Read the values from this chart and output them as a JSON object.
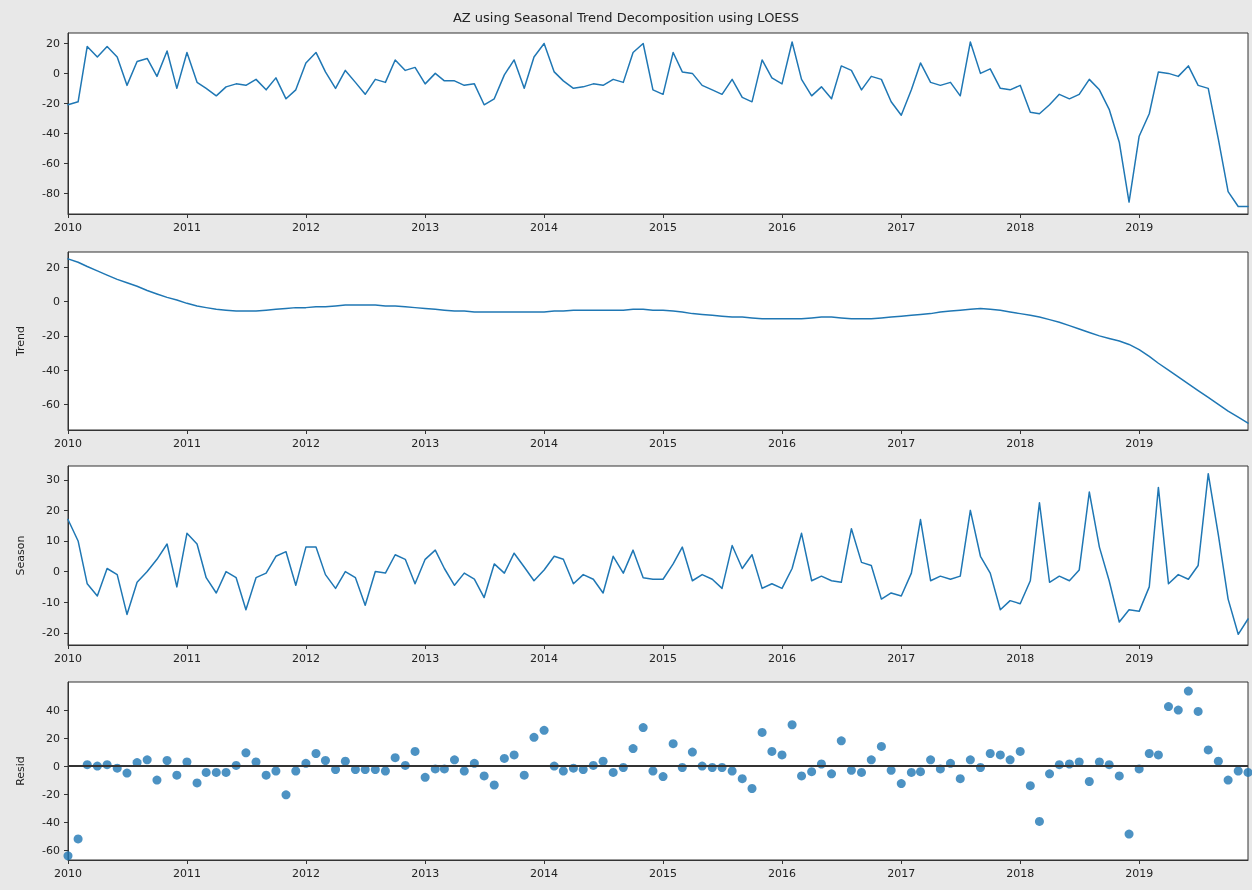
{
  "chart_data": [
    {
      "type": "line",
      "title": "AZ using Seasonal Trend Decomposition using LOESS",
      "color": "#1f77b4",
      "marker": "none",
      "line_style": "solid",
      "grid": false,
      "x": [
        "2010-01",
        "2010-02",
        "2010-03",
        "2010-04",
        "2010-05",
        "2010-06",
        "2010-07",
        "2010-08",
        "2010-09",
        "2010-10",
        "2010-11",
        "2010-12",
        "2011-01",
        "2011-02",
        "2011-03",
        "2011-04",
        "2011-05",
        "2011-06",
        "2011-07",
        "2011-08",
        "2011-09",
        "2011-10",
        "2011-11",
        "2011-12",
        "2012-01",
        "2012-02",
        "2012-03",
        "2012-04",
        "2012-05",
        "2012-06",
        "2012-07",
        "2012-08",
        "2012-09",
        "2012-10",
        "2012-11",
        "2012-12",
        "2013-01",
        "2013-02",
        "2013-03",
        "2013-04",
        "2013-05",
        "2013-06",
        "2013-07",
        "2013-08",
        "2013-09",
        "2013-10",
        "2013-11",
        "2013-12",
        "2014-01",
        "2014-02",
        "2014-03",
        "2014-04",
        "2014-05",
        "2014-06",
        "2014-07",
        "2014-08",
        "2014-09",
        "2014-10",
        "2014-11",
        "2014-12",
        "2015-01",
        "2015-02",
        "2015-03",
        "2015-04",
        "2015-05",
        "2015-06",
        "2015-07",
        "2015-08",
        "2015-09",
        "2015-10",
        "2015-11",
        "2015-12",
        "2016-01",
        "2016-02",
        "2016-03",
        "2016-04",
        "2016-05",
        "2016-06",
        "2016-07",
        "2016-08",
        "2016-09",
        "2016-10",
        "2016-11",
        "2016-12",
        "2017-01",
        "2017-02",
        "2017-03",
        "2017-04",
        "2017-05",
        "2017-06",
        "2017-07",
        "2017-08",
        "2017-09",
        "2017-10",
        "2017-11",
        "2017-12",
        "2018-01",
        "2018-02",
        "2018-03",
        "2018-04",
        "2018-05",
        "2018-06",
        "2018-07",
        "2018-08",
        "2018-09",
        "2018-10",
        "2018-11",
        "2018-12",
        "2019-01",
        "2019-02",
        "2019-03",
        "2019-04",
        "2019-05",
        "2019-06",
        "2019-07",
        "2019-08",
        "2019-09",
        "2019-10",
        "2019-11",
        "2019-12"
      ],
      "values": [
        -21,
        -19,
        18,
        11,
        18,
        11,
        -8,
        8,
        10,
        -2,
        15,
        -10,
        14,
        -6,
        -10,
        -15,
        -9,
        -7,
        -8,
        -4,
        -11,
        -3,
        -17,
        -11,
        7,
        14,
        1,
        -10,
        2,
        -6,
        -14,
        -4,
        -6,
        9,
        2,
        4,
        -7,
        0,
        -5,
        -5,
        -8,
        -7,
        -21,
        -17,
        -1,
        9,
        -10,
        11,
        20,
        1,
        -5,
        -10,
        -9,
        -7,
        -8,
        -4,
        -6,
        14,
        20,
        -11,
        -14,
        14,
        1,
        0,
        -8,
        -11,
        -14,
        -4,
        -16,
        -19,
        9,
        -3,
        -7,
        21,
        -4,
        -15,
        -9,
        -17,
        5,
        2,
        -11,
        -2,
        -4,
        -19,
        -28,
        -11,
        7,
        -6,
        -8,
        -6,
        -15,
        21,
        0,
        3,
        -10,
        -11,
        -8,
        -26,
        -27,
        -21,
        -14,
        -17,
        -14,
        -4,
        -11,
        -24,
        -46,
        -86,
        -42,
        -27,
        1,
        0,
        -2,
        5,
        -8,
        -10,
        -44,
        -79,
        -89,
        -89
      ],
      "xlim": [
        "2010-01",
        "2019-12"
      ],
      "xticks": [
        "2010",
        "2011",
        "2012",
        "2013",
        "2014",
        "2015",
        "2016",
        "2017",
        "2018",
        "2019"
      ],
      "ylim": [
        -94,
        27
      ],
      "yticks": [
        -80,
        -60,
        -40,
        -20,
        0,
        20
      ]
    },
    {
      "type": "line",
      "ylabel": "Trend",
      "color": "#1f77b4",
      "marker": "none",
      "line_style": "solid",
      "grid": false,
      "x": [
        "2010-01",
        "2010-02",
        "2010-03",
        "2010-04",
        "2010-05",
        "2010-06",
        "2010-07",
        "2010-08",
        "2010-09",
        "2010-10",
        "2010-11",
        "2010-12",
        "2011-01",
        "2011-02",
        "2011-03",
        "2011-04",
        "2011-05",
        "2011-06",
        "2011-07",
        "2011-08",
        "2011-09",
        "2011-10",
        "2011-11",
        "2011-12",
        "2012-01",
        "2012-02",
        "2012-03",
        "2012-04",
        "2012-05",
        "2012-06",
        "2012-07",
        "2012-08",
        "2012-09",
        "2012-10",
        "2012-11",
        "2012-12",
        "2013-01",
        "2013-02",
        "2013-03",
        "2013-04",
        "2013-05",
        "2013-06",
        "2013-07",
        "2013-08",
        "2013-09",
        "2013-10",
        "2013-11",
        "2013-12",
        "2014-01",
        "2014-02",
        "2014-03",
        "2014-04",
        "2014-05",
        "2014-06",
        "2014-07",
        "2014-08",
        "2014-09",
        "2014-10",
        "2014-11",
        "2014-12",
        "2015-01",
        "2015-02",
        "2015-03",
        "2015-04",
        "2015-05",
        "2015-06",
        "2015-07",
        "2015-08",
        "2015-09",
        "2015-10",
        "2015-11",
        "2015-12",
        "2016-01",
        "2016-02",
        "2016-03",
        "2016-04",
        "2016-05",
        "2016-06",
        "2016-07",
        "2016-08",
        "2016-09",
        "2016-10",
        "2016-11",
        "2016-12",
        "2017-01",
        "2017-02",
        "2017-03",
        "2017-04",
        "2017-05",
        "2017-06",
        "2017-07",
        "2017-08",
        "2017-09",
        "2017-10",
        "2017-11",
        "2017-12",
        "2018-01",
        "2018-02",
        "2018-03",
        "2018-04",
        "2018-05",
        "2018-06",
        "2018-07",
        "2018-08",
        "2018-09",
        "2018-10",
        "2018-11",
        "2018-12",
        "2019-01",
        "2019-02",
        "2019-03",
        "2019-04",
        "2019-05",
        "2019-06",
        "2019-07",
        "2019-08",
        "2019-09",
        "2019-10",
        "2019-11",
        "2019-12"
      ],
      "values": [
        25,
        23,
        20.5,
        18,
        15.5,
        13,
        11,
        9,
        6.5,
        4.5,
        2.5,
        1,
        -1,
        -2.5,
        -3.5,
        -4.5,
        -5,
        -5.5,
        -5.5,
        -5.5,
        -5,
        -4.5,
        -4,
        -3.5,
        -3.5,
        -3,
        -3,
        -2.5,
        -2,
        -2,
        -2,
        -2,
        -2.5,
        -2.5,
        -3,
        -3.5,
        -4,
        -4.5,
        -5,
        -5.5,
        -5.5,
        -6,
        -6,
        -6,
        -6,
        -6,
        -6,
        -6,
        -6,
        -5.5,
        -5.5,
        -5,
        -5,
        -5,
        -5,
        -5,
        -5,
        -4.5,
        -4.5,
        -5,
        -5,
        -5.5,
        -6,
        -7,
        -7.5,
        -8,
        -8.5,
        -9,
        -9,
        -9.5,
        -10,
        -10,
        -10,
        -10,
        -10,
        -9.5,
        -9,
        -9,
        -9.5,
        -10,
        -10,
        -10,
        -9.5,
        -9,
        -8.5,
        -8,
        -7.5,
        -7,
        -6,
        -5.5,
        -5,
        -4.5,
        -4,
        -4.5,
        -5,
        -6,
        -7,
        -8,
        -9,
        -10.5,
        -12,
        -14,
        -16,
        -18,
        -20,
        -21.5,
        -23,
        -25,
        -28,
        -32,
        -36,
        -40,
        -44,
        -48,
        -52,
        -56,
        -60,
        -64,
        -67.5,
        -71
      ],
      "xlim": [
        "2010-01",
        "2019-12"
      ],
      "xticks": [
        "2010",
        "2011",
        "2012",
        "2013",
        "2014",
        "2015",
        "2016",
        "2017",
        "2018",
        "2019"
      ],
      "ylim": [
        -75,
        29
      ],
      "yticks": [
        -60,
        -40,
        -20,
        0,
        20
      ]
    },
    {
      "type": "line",
      "ylabel": "Season",
      "color": "#1f77b4",
      "marker": "none",
      "line_style": "solid",
      "grid": false,
      "x": [
        "2010-01",
        "2010-02",
        "2010-03",
        "2010-04",
        "2010-05",
        "2010-06",
        "2010-07",
        "2010-08",
        "2010-09",
        "2010-10",
        "2010-11",
        "2010-12",
        "2011-01",
        "2011-02",
        "2011-03",
        "2011-04",
        "2011-05",
        "2011-06",
        "2011-07",
        "2011-08",
        "2011-09",
        "2011-10",
        "2011-11",
        "2011-12",
        "2012-01",
        "2012-02",
        "2012-03",
        "2012-04",
        "2012-05",
        "2012-06",
        "2012-07",
        "2012-08",
        "2012-09",
        "2012-10",
        "2012-11",
        "2012-12",
        "2013-01",
        "2013-02",
        "2013-03",
        "2013-04",
        "2013-05",
        "2013-06",
        "2013-07",
        "2013-08",
        "2013-09",
        "2013-10",
        "2013-11",
        "2013-12",
        "2014-01",
        "2014-02",
        "2014-03",
        "2014-04",
        "2014-05",
        "2014-06",
        "2014-07",
        "2014-08",
        "2014-09",
        "2014-10",
        "2014-11",
        "2014-12",
        "2015-01",
        "2015-02",
        "2015-03",
        "2015-04",
        "2015-05",
        "2015-06",
        "2015-07",
        "2015-08",
        "2015-09",
        "2015-10",
        "2015-11",
        "2015-12",
        "2016-01",
        "2016-02",
        "2016-03",
        "2016-04",
        "2016-05",
        "2016-06",
        "2016-07",
        "2016-08",
        "2016-09",
        "2016-10",
        "2016-11",
        "2016-12",
        "2017-01",
        "2017-02",
        "2017-03",
        "2017-04",
        "2017-05",
        "2017-06",
        "2017-07",
        "2017-08",
        "2017-09",
        "2017-10",
        "2017-11",
        "2017-12",
        "2018-01",
        "2018-02",
        "2018-03",
        "2018-04",
        "2018-05",
        "2018-06",
        "2018-07",
        "2018-08",
        "2018-09",
        "2018-10",
        "2018-11",
        "2018-12",
        "2019-01",
        "2019-02",
        "2019-03",
        "2019-04",
        "2019-05",
        "2019-06",
        "2019-07",
        "2019-08",
        "2019-09",
        "2019-10",
        "2019-11",
        "2019-12"
      ],
      "values": [
        17,
        10,
        -4,
        -8,
        1,
        -1,
        -14,
        -3.5,
        0,
        4,
        9,
        -5,
        12.5,
        9,
        -2,
        -7,
        0,
        -2,
        -12.5,
        -2,
        -0.5,
        5,
        6.5,
        -4.5,
        8,
        8,
        -1,
        -5.5,
        0,
        -2,
        -11,
        0,
        -0.5,
        5.5,
        4,
        -4,
        4,
        7,
        1,
        -4.5,
        -0.5,
        -2.5,
        -8.5,
        2.5,
        -0.5,
        6,
        1.5,
        -3,
        0.5,
        5,
        4,
        -4,
        -1,
        -2.5,
        -7,
        5,
        -0.5,
        7,
        -2,
        -2.5,
        -2.5,
        2.5,
        8,
        -3,
        -1,
        -2.5,
        -5.5,
        8.5,
        1,
        5.5,
        -5.5,
        -4,
        -5.5,
        1,
        12.5,
        -3,
        -1.5,
        -3,
        -3.5,
        14,
        3,
        2,
        -9,
        -7,
        -8,
        -0.5,
        17,
        -3,
        -1.5,
        -2.5,
        -1.5,
        20,
        5,
        -0.5,
        -12.5,
        -9.5,
        -10.5,
        -3,
        22.5,
        -3.5,
        -1.5,
        -3,
        0.5,
        26,
        8,
        -3,
        -16.5,
        -12.5,
        -13,
        -5,
        27.5,
        -4,
        -1,
        -2.5,
        2,
        32,
        12,
        -9,
        -20.5,
        -15.5
      ],
      "xlim": [
        "2010-01",
        "2019-12"
      ],
      "xticks": [
        "2010",
        "2011",
        "2012",
        "2013",
        "2014",
        "2015",
        "2016",
        "2017",
        "2018",
        "2019"
      ],
      "ylim": [
        -24,
        34.5
      ],
      "yticks": [
        -20,
        -10,
        0,
        10,
        20,
        30
      ]
    },
    {
      "type": "scatter",
      "ylabel": "Resid",
      "color": "#1f77b4",
      "marker": "circle",
      "grid": false,
      "x": [
        "2010-01",
        "2010-02",
        "2010-03",
        "2010-04",
        "2010-05",
        "2010-06",
        "2010-07",
        "2010-08",
        "2010-09",
        "2010-10",
        "2010-11",
        "2010-12",
        "2011-01",
        "2011-02",
        "2011-03",
        "2011-04",
        "2011-05",
        "2011-06",
        "2011-07",
        "2011-08",
        "2011-09",
        "2011-10",
        "2011-11",
        "2011-12",
        "2012-01",
        "2012-02",
        "2012-03",
        "2012-04",
        "2012-05",
        "2012-06",
        "2012-07",
        "2012-08",
        "2012-09",
        "2012-10",
        "2012-11",
        "2012-12",
        "2013-01",
        "2013-02",
        "2013-03",
        "2013-04",
        "2013-05",
        "2013-06",
        "2013-07",
        "2013-08",
        "2013-09",
        "2013-10",
        "2013-11",
        "2013-12",
        "2014-01",
        "2014-02",
        "2014-03",
        "2014-04",
        "2014-05",
        "2014-06",
        "2014-07",
        "2014-08",
        "2014-09",
        "2014-10",
        "2014-11",
        "2014-12",
        "2015-01",
        "2015-02",
        "2015-03",
        "2015-04",
        "2015-05",
        "2015-06",
        "2015-07",
        "2015-08",
        "2015-09",
        "2015-10",
        "2015-11",
        "2015-12",
        "2016-01",
        "2016-02",
        "2016-03",
        "2016-04",
        "2016-05",
        "2016-06",
        "2016-07",
        "2016-08",
        "2016-09",
        "2016-10",
        "2016-11",
        "2016-12",
        "2017-01",
        "2017-02",
        "2017-03",
        "2017-04",
        "2017-05",
        "2017-06",
        "2017-07",
        "2017-08",
        "2017-09",
        "2017-10",
        "2017-11",
        "2017-12",
        "2018-01",
        "2018-02",
        "2018-03",
        "2018-04",
        "2018-05",
        "2018-06",
        "2018-07",
        "2018-08",
        "2018-09",
        "2018-10",
        "2018-11",
        "2018-12",
        "2019-01",
        "2019-02",
        "2019-03",
        "2019-04",
        "2019-05",
        "2019-06",
        "2019-07",
        "2019-08",
        "2019-09",
        "2019-10",
        "2019-11",
        "2019-12"
      ],
      "values": [
        -64,
        -52,
        1,
        0,
        1,
        -1.5,
        -5,
        2.5,
        4.5,
        -10,
        4,
        -6.5,
        3,
        -12,
        -4.5,
        -4.5,
        -4.5,
        0.5,
        9.5,
        3,
        -6.5,
        -3.5,
        -20.5,
        -3.5,
        2,
        9,
        4,
        -2.5,
        3.5,
        -2.5,
        -2.5,
        -2.5,
        -3.5,
        6,
        0.5,
        10.5,
        -8,
        -2,
        -2,
        4.5,
        -3.5,
        2,
        -7,
        -13.5,
        5.5,
        8,
        -6.5,
        20.5,
        25.5,
        0,
        -3.5,
        -1.5,
        -2.5,
        0.5,
        3.5,
        -4.5,
        -1,
        12.5,
        27.5,
        -3.5,
        -7.5,
        16,
        -1,
        10,
        0,
        -1,
        -1,
        -3.5,
        -9,
        -16,
        24,
        10.5,
        8,
        29.5,
        -7,
        -4,
        1.5,
        -5.5,
        18,
        -3,
        -4.5,
        4.5,
        14,
        -3,
        -12.5,
        -4.5,
        -4,
        4.5,
        -2,
        2,
        -9,
        4.5,
        -1,
        9,
        8,
        4.5,
        10.5,
        -14,
        -39.5,
        -5.5,
        1,
        1.5,
        3,
        -11,
        3,
        1,
        -7,
        -48.5,
        -2,
        9,
        8,
        42.5,
        40,
        53.5,
        39,
        11.5,
        3.5,
        -10,
        -3.5,
        -4.5
      ],
      "xlim": [
        "2010-01",
        "2019-12"
      ],
      "xticks": [
        "2010",
        "2011",
        "2012",
        "2013",
        "2014",
        "2015",
        "2016",
        "2017",
        "2018",
        "2019"
      ],
      "ylim": [
        -67,
        60
      ],
      "yticks": [
        -60,
        -40,
        -20,
        0,
        20,
        40
      ],
      "ref_lines": [
        {
          "axis": "y",
          "value": 0,
          "color": "#333333",
          "line_style": "solid"
        }
      ]
    }
  ]
}
